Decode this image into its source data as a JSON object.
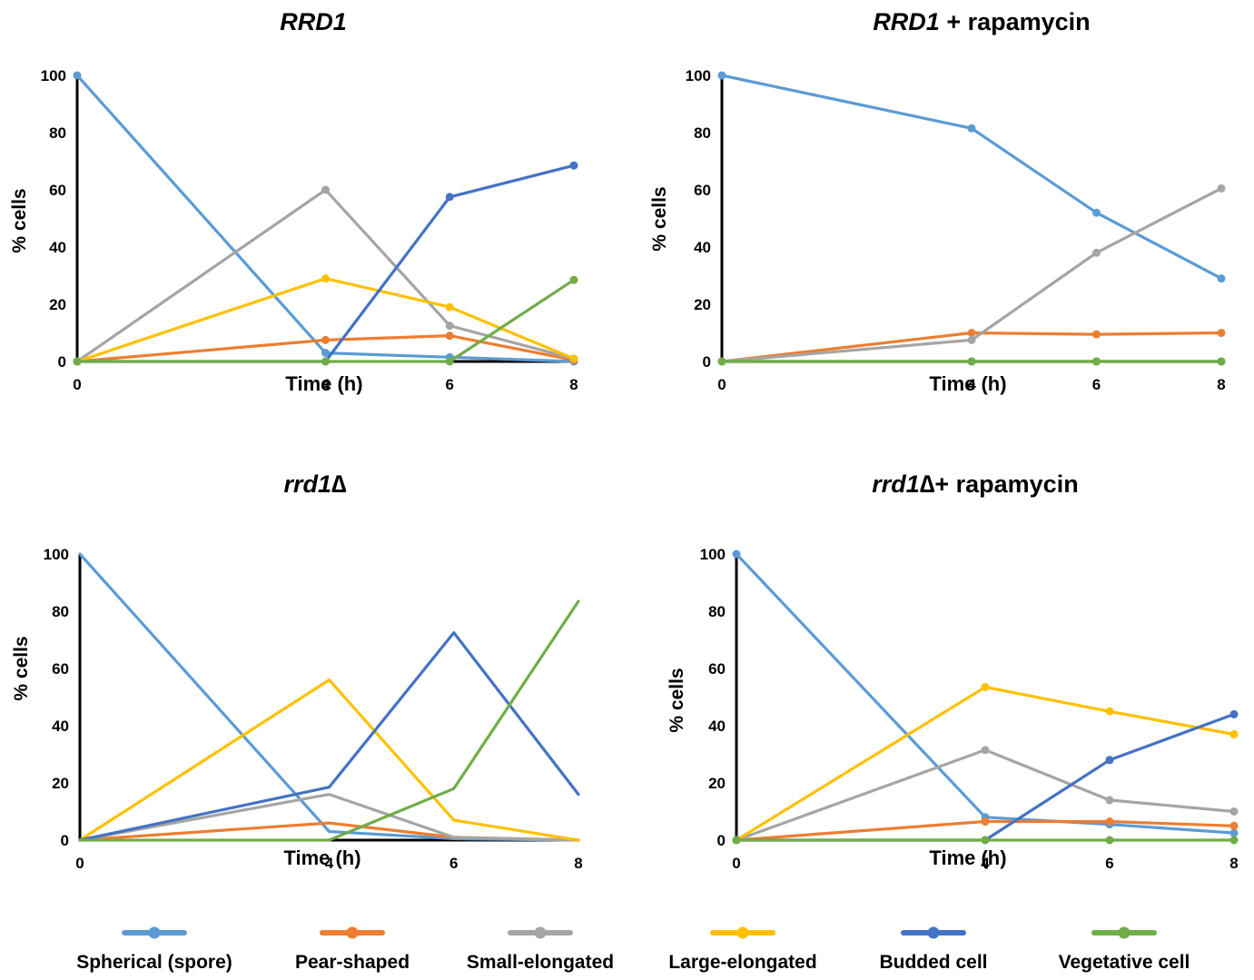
{
  "legend": [
    {
      "label": "Spherical (spore)",
      "color": "#5b9bd5"
    },
    {
      "label": "Pear-shaped",
      "color": "#ed7d31"
    },
    {
      "label": "Small-elongated",
      "color": "#a5a5a5"
    },
    {
      "label": "Large-elongated",
      "color": "#ffc000"
    },
    {
      "label": "Budded cell",
      "color": "#4472c4"
    },
    {
      "label": "Vegetative cell",
      "color": "#70ad47"
    }
  ],
  "chart_data": [
    {
      "type": "line",
      "title_italic": "RRD1",
      "title_rest": "",
      "xlabel": "Time (h)",
      "ylabel": "% cells",
      "x": [
        0,
        4,
        6,
        8
      ],
      "ylim": [
        0,
        100
      ],
      "yticks": [
        0,
        20,
        40,
        60,
        80,
        100
      ],
      "markers": true,
      "series": [
        {
          "name": "Spherical (spore)",
          "color": "#5b9bd5",
          "values": [
            100,
            3,
            1.5,
            0
          ]
        },
        {
          "name": "Pear-shaped",
          "color": "#ed7d31",
          "values": [
            0,
            7.5,
            9,
            0.5
          ]
        },
        {
          "name": "Small-elongated",
          "color": "#a5a5a5",
          "values": [
            0,
            60,
            12.5,
            1
          ]
        },
        {
          "name": "Large-elongated",
          "color": "#ffc000",
          "values": [
            0,
            29,
            19,
            1
          ]
        },
        {
          "name": "Budded cell",
          "color": "#4472c4",
          "values": [
            0,
            0,
            57.5,
            68.5
          ]
        },
        {
          "name": "Vegetative cell",
          "color": "#70ad47",
          "values": [
            0,
            0,
            0,
            28.5
          ]
        }
      ]
    },
    {
      "type": "line",
      "title_italic": "RRD1",
      "title_rest": " + rapamycin",
      "xlabel": "Time (h)",
      "ylabel": "% cells",
      "x": [
        0,
        4,
        6,
        8
      ],
      "ylim": [
        0,
        100
      ],
      "yticks": [
        0,
        20,
        40,
        60,
        80,
        100
      ],
      "markers": true,
      "series": [
        {
          "name": "Spherical (spore)",
          "color": "#5b9bd5",
          "values": [
            100,
            81.5,
            52,
            29
          ]
        },
        {
          "name": "Pear-shaped",
          "color": "#ed7d31",
          "values": [
            0,
            10,
            9.5,
            10
          ]
        },
        {
          "name": "Small-elongated",
          "color": "#a5a5a5",
          "values": [
            0,
            7.5,
            38,
            60.5
          ]
        },
        {
          "name": "Large-elongated",
          "color": "#ffc000",
          "values": [
            0,
            0,
            0,
            0
          ]
        },
        {
          "name": "Budded cell",
          "color": "#4472c4",
          "values": [
            0,
            0,
            0,
            0
          ]
        },
        {
          "name": "Vegetative cell",
          "color": "#70ad47",
          "values": [
            0,
            0,
            0,
            0
          ]
        }
      ]
    },
    {
      "type": "line",
      "title_italic": "rrd1",
      "title_rest": "∆",
      "xlabel": "Time (h)",
      "ylabel": "% cells",
      "x": [
        0,
        4,
        6,
        8
      ],
      "ylim": [
        0,
        100
      ],
      "yticks": [
        0,
        20,
        40,
        60,
        80,
        100
      ],
      "markers": false,
      "series": [
        {
          "name": "Spherical (spore)",
          "color": "#5b9bd5",
          "values": [
            100,
            3,
            0.5,
            0
          ]
        },
        {
          "name": "Pear-shaped",
          "color": "#ed7d31",
          "values": [
            0,
            6,
            1,
            0
          ]
        },
        {
          "name": "Small-elongated",
          "color": "#a5a5a5",
          "values": [
            0,
            16,
            1,
            0
          ]
        },
        {
          "name": "Large-elongated",
          "color": "#ffc000",
          "values": [
            0,
            56,
            7,
            0
          ]
        },
        {
          "name": "Budded cell",
          "color": "#4472c4",
          "values": [
            0,
            18.5,
            72.5,
            16
          ]
        },
        {
          "name": "Vegetative cell",
          "color": "#70ad47",
          "values": [
            0,
            0,
            18,
            83.5
          ]
        }
      ]
    },
    {
      "type": "line",
      "title_italic": "rrd1",
      "title_rest": "∆+ rapamycin",
      "xlabel": "Time (h)",
      "ylabel": "% cells",
      "x": [
        0,
        4,
        6,
        8
      ],
      "ylim": [
        0,
        100
      ],
      "yticks": [
        0,
        20,
        40,
        60,
        80,
        100
      ],
      "markers": true,
      "series": [
        {
          "name": "Spherical (spore)",
          "color": "#5b9bd5",
          "values": [
            100,
            8,
            5.5,
            2.5
          ]
        },
        {
          "name": "Pear-shaped",
          "color": "#ed7d31",
          "values": [
            0,
            6.5,
            6.5,
            5
          ]
        },
        {
          "name": "Small-elongated",
          "color": "#a5a5a5",
          "values": [
            0,
            31.5,
            14,
            10
          ]
        },
        {
          "name": "Large-elongated",
          "color": "#ffc000",
          "values": [
            0,
            53.5,
            45,
            37
          ]
        },
        {
          "name": "Budded cell",
          "color": "#4472c4",
          "values": [
            0,
            0,
            28,
            44
          ]
        },
        {
          "name": "Vegetative cell",
          "color": "#70ad47",
          "values": [
            0,
            0,
            0,
            0
          ]
        }
      ]
    }
  ]
}
